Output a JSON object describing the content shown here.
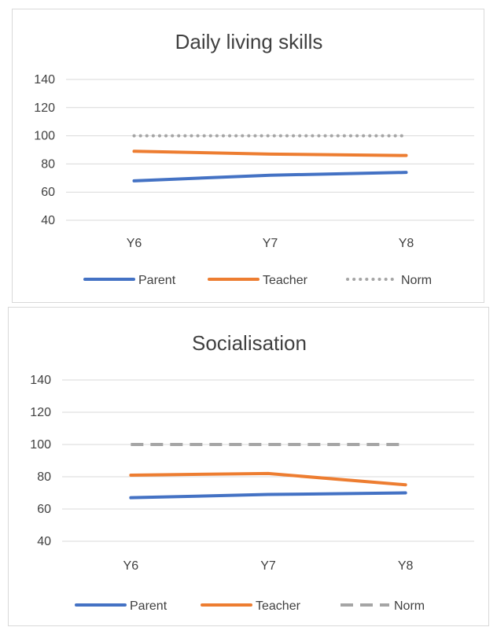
{
  "chart_data": [
    {
      "type": "line",
      "title": "Daily living skills",
      "categories": [
        "Y6",
        "Y7",
        "Y8"
      ],
      "ylim": [
        40,
        140
      ],
      "yticks": [
        "140",
        "120",
        "100",
        "80",
        "60",
        "40"
      ],
      "grid": true,
      "legend_position": "bottom",
      "series": [
        {
          "name": "Parent",
          "values": [
            68,
            72,
            74
          ],
          "color": "#4472C4",
          "style": "solid"
        },
        {
          "name": "Teacher",
          "values": [
            89,
            87,
            86
          ],
          "color": "#ED7D31",
          "style": "solid"
        },
        {
          "name": "Norm",
          "values": [
            100,
            100,
            100
          ],
          "color": "#A5A5A5",
          "style": "dotted"
        }
      ]
    },
    {
      "type": "line",
      "title": "Socialisation",
      "categories": [
        "Y6",
        "Y7",
        "Y8"
      ],
      "ylim": [
        40,
        140
      ],
      "yticks": [
        "140",
        "120",
        "100",
        "80",
        "60",
        "40"
      ],
      "grid": true,
      "legend_position": "bottom",
      "series": [
        {
          "name": "Parent",
          "values": [
            67,
            69,
            70
          ],
          "color": "#4472C4",
          "style": "solid"
        },
        {
          "name": "Teacher",
          "values": [
            81,
            82,
            75
          ],
          "color": "#ED7D31",
          "style": "solid"
        },
        {
          "name": "Norm",
          "values": [
            100,
            100,
            100
          ],
          "color": "#A5A5A5",
          "style": "dashed"
        }
      ]
    }
  ]
}
